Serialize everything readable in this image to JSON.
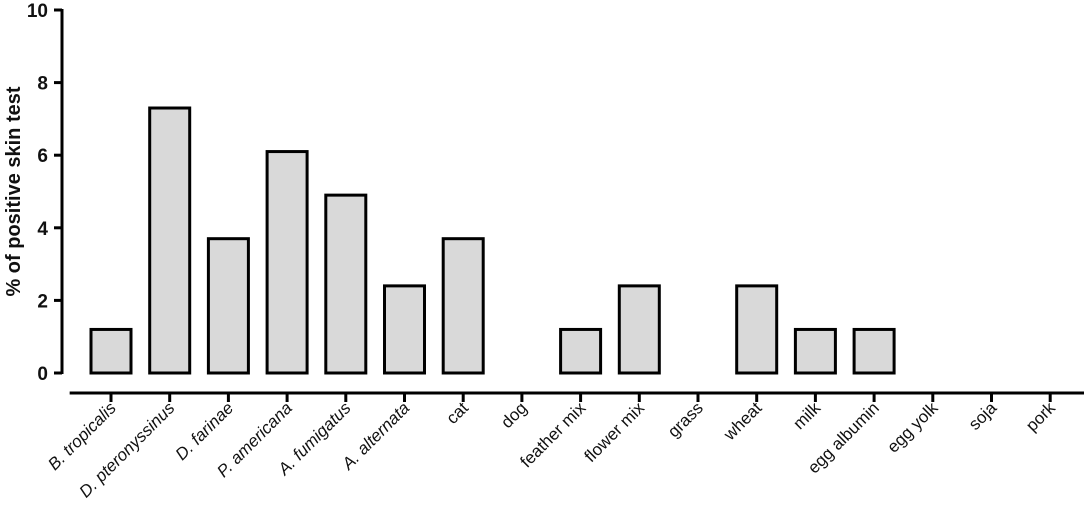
{
  "chart_data": {
    "type": "bar",
    "title": "",
    "xlabel": "",
    "ylabel": "% of positive skin test",
    "ylim": [
      0,
      10
    ],
    "yticks": [
      0,
      2,
      4,
      6,
      8,
      10
    ],
    "grid": false,
    "legend": "none",
    "bar_color": "#d9d9d9",
    "edge_color": "#000000",
    "categories": [
      {
        "label": "B. tropicalis",
        "italic": true
      },
      {
        "label": "D. pteronyssinus",
        "italic": true
      },
      {
        "label": "D. farinae",
        "italic": true
      },
      {
        "label": "P. americana",
        "italic": true
      },
      {
        "label": "A. fumigatus",
        "italic": true
      },
      {
        "label": "A. alternata",
        "italic": true
      },
      {
        "label": "cat",
        "italic": false
      },
      {
        "label": "dog",
        "italic": false
      },
      {
        "label": "feather mix",
        "italic": false
      },
      {
        "label": "flower mix",
        "italic": false
      },
      {
        "label": "grass",
        "italic": false
      },
      {
        "label": "wheat",
        "italic": false
      },
      {
        "label": "milk",
        "italic": false
      },
      {
        "label": "egg albumin",
        "italic": false
      },
      {
        "label": "egg yolk",
        "italic": false
      },
      {
        "label": "soja",
        "italic": false
      },
      {
        "label": "pork",
        "italic": false
      }
    ],
    "values": [
      1.2,
      7.3,
      3.7,
      6.1,
      4.9,
      2.4,
      3.7,
      0,
      1.2,
      2.4,
      0,
      2.4,
      1.2,
      1.2,
      0,
      0,
      0
    ]
  }
}
